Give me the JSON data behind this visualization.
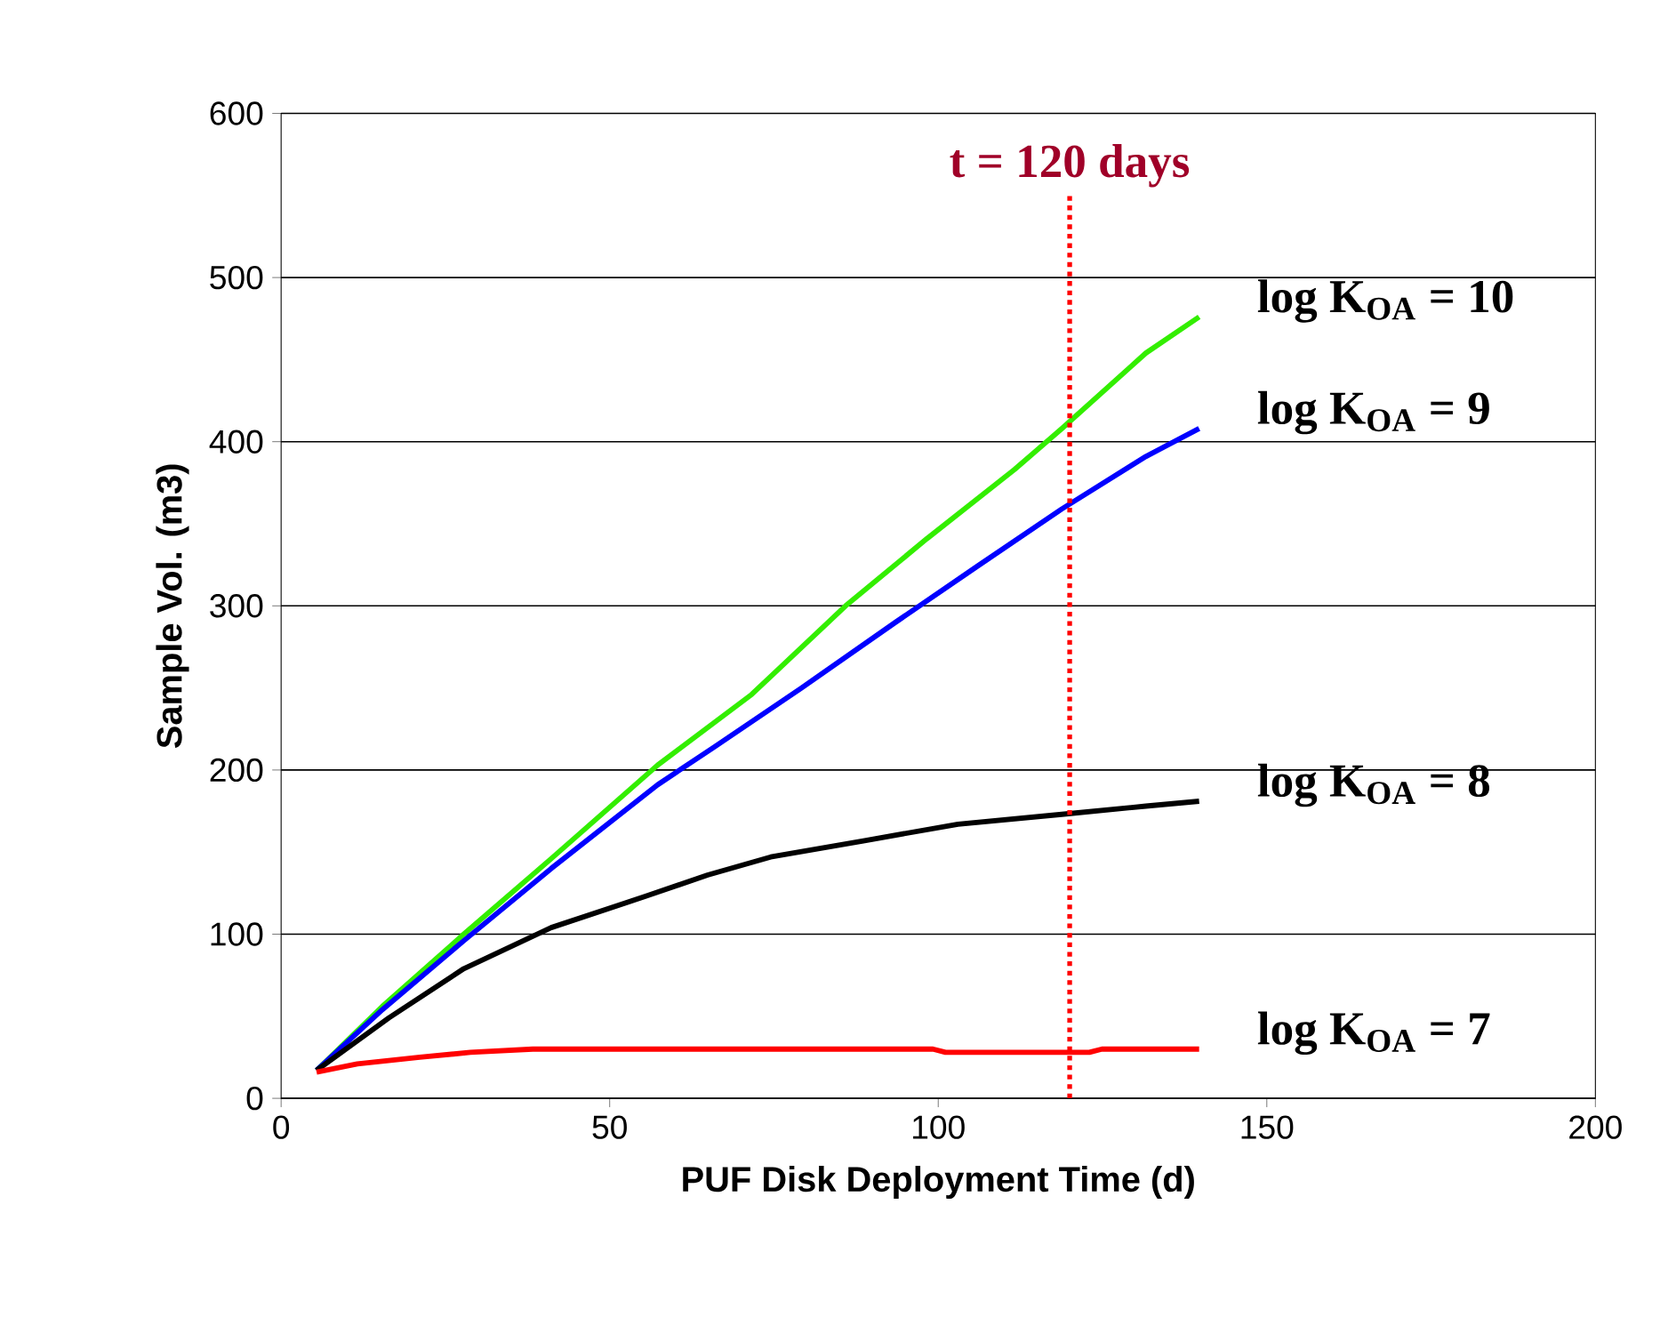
{
  "chart_data": {
    "type": "line",
    "xlabel": "PUF Disk Deployment Time (d)",
    "ylabel": "Sample Vol. (m3)",
    "xlim": [
      0,
      200
    ],
    "xticks": [
      0,
      50,
      100,
      150,
      200
    ],
    "ylim": [
      0,
      600
    ],
    "yticks": [
      0,
      100,
      200,
      300,
      400,
      500,
      600
    ],
    "grid": "y",
    "legend": false,
    "line_style": "solid",
    "marker": "none",
    "series": [
      {
        "name": "log K$_{OA}$ = 10",
        "color": "#33ee00",
        "x": [
          5.4,
          15.4,
          27.8,
          41.1,
          57.3,
          71.6,
          85.9,
          98.3,
          111.6,
          118.8,
          131.6,
          139.7
        ],
        "values": [
          17,
          56,
          100,
          146,
          203,
          246,
          300,
          341,
          383,
          408,
          454,
          476
        ]
      },
      {
        "name": "log K$_{OA}$ = 9",
        "color": "#0000ff",
        "x": [
          5.4,
          15.4,
          27.8,
          41.1,
          57.3,
          65.9,
          79.2,
          93.5,
          105.9,
          118.8,
          131.6,
          139.7
        ],
        "values": [
          17,
          54,
          96,
          140,
          191,
          214,
          250,
          290,
          324,
          359,
          391,
          408
        ]
      },
      {
        "name": "log K$_{OA}$ = 8",
        "color": "#000000",
        "x": [
          5.4,
          16.4,
          27.8,
          41.1,
          55.4,
          64.9,
          74.5,
          88.8,
          103.0,
          118.8,
          131.6,
          139.7
        ],
        "values": [
          17,
          49,
          79,
          104,
          123,
          136,
          147,
          157,
          167,
          173,
          178,
          181
        ]
      },
      {
        "name": "log K$_{OA}$ = 7",
        "color": "#ff0000",
        "x": [
          5.4,
          11.6,
          21.1,
          28.8,
          38.3,
          99.2,
          101.1,
          123.0,
          124.9,
          139.7
        ],
        "values": [
          16,
          21,
          25,
          28,
          30,
          30,
          28,
          28,
          30,
          30
        ]
      }
    ],
    "ref_lines": [
      {
        "axis": "x",
        "value": 120,
        "label": "t = 120 days",
        "color": "#ff0000",
        "line_style": "dotted"
      }
    ]
  }
}
